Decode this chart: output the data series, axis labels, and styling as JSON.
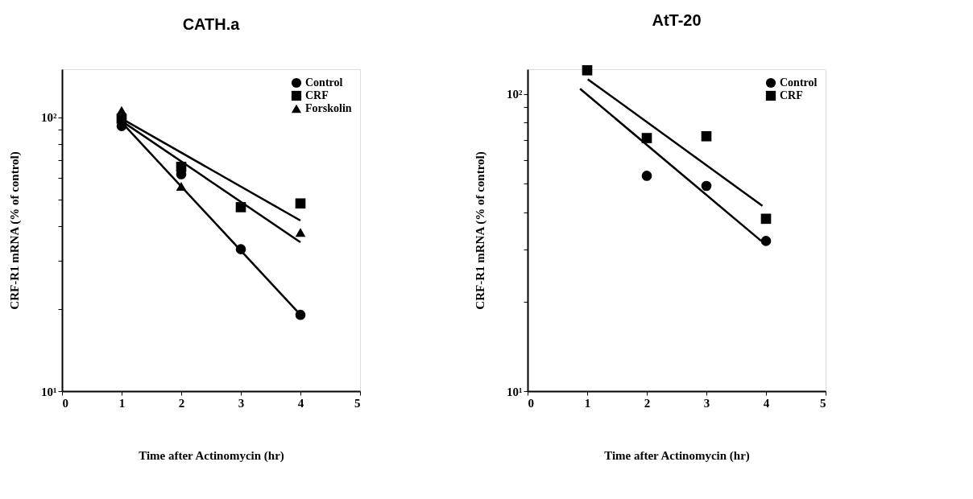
{
  "chart_data": [
    {
      "type": "scatter",
      "title": "CATH.a",
      "xlabel": "Time after Actinomycin (hr)",
      "ylabel": "CRF-R1 mRNA (% of control)",
      "log": "y",
      "grid": false,
      "legend": "top right",
      "xlim": [
        0,
        5
      ],
      "xticks": [
        0,
        1,
        2,
        3,
        4,
        5
      ],
      "ylim": [
        10,
        150
      ],
      "yticks": [
        {
          "value": 10,
          "label": "10¹"
        },
        {
          "value": 20,
          "label": null
        },
        {
          "value": 30,
          "label": null
        },
        {
          "value": 40,
          "label": null
        },
        {
          "value": 50,
          "label": null
        },
        {
          "value": 60,
          "label": null
        },
        {
          "value": 70,
          "label": null
        },
        {
          "value": 80,
          "label": null
        },
        {
          "value": 90,
          "label": null
        },
        {
          "value": 100,
          "label": "10²"
        }
      ],
      "series": [
        {
          "name": "Control",
          "color": "#000000",
          "marker": "circle",
          "x": [
            1,
            2,
            3,
            4
          ],
          "values": [
            93,
            62,
            33,
            19
          ]
        },
        {
          "name": "CRF",
          "color": "#000000",
          "marker": "square",
          "x": [
            1,
            2,
            3,
            4
          ],
          "values": [
            99,
            66,
            47,
            48.5
          ]
        },
        {
          "name": "Forskolin",
          "color": "#000000",
          "marker": "triangle",
          "x": [
            1,
            2,
            4
          ],
          "values": [
            106,
            56,
            38
          ]
        },
        {
          "type": "line",
          "color": "#000000",
          "x": [
            1,
            4
          ],
          "values": [
            96,
            19
          ]
        },
        {
          "type": "line",
          "color": "#000000",
          "x": [
            1,
            4
          ],
          "values": [
            99,
            42
          ]
        },
        {
          "type": "line",
          "color": "#000000",
          "x": [
            1,
            4
          ],
          "values": [
            97,
            35
          ]
        }
      ]
    },
    {
      "type": "scatter",
      "title": "AtT-20",
      "xlabel": "Time after Actinomycin (hr)",
      "ylabel": "CRF-R1 mRNA (% of control)",
      "log": "y",
      "grid": false,
      "legend": "top right",
      "xlim": [
        0,
        5
      ],
      "xticks": [
        0,
        1,
        2,
        3,
        4,
        5
      ],
      "ylim": [
        10,
        121
      ],
      "yticks": [
        {
          "value": 10,
          "label": "10¹"
        },
        {
          "value": 20,
          "label": null
        },
        {
          "value": 30,
          "label": null
        },
        {
          "value": 40,
          "label": null
        },
        {
          "value": 50,
          "label": null
        },
        {
          "value": 60,
          "label": null
        },
        {
          "value": 70,
          "label": null
        },
        {
          "value": 80,
          "label": null
        },
        {
          "value": 90,
          "label": null
        },
        {
          "value": 100,
          "label": "10²"
        }
      ],
      "series": [
        {
          "name": "Control",
          "color": "#000000",
          "marker": "circle",
          "x": [
            2,
            3,
            4
          ],
          "values": [
            53,
            49,
            32
          ]
        },
        {
          "name": "CRF",
          "color": "#000000",
          "marker": "square",
          "x": [
            1,
            2,
            3,
            4
          ],
          "values": [
            120,
            71,
            72,
            38
          ]
        },
        {
          "type": "line",
          "color": "#000000",
          "x": [
            0.88,
            3.92
          ],
          "values": [
            104,
            32
          ]
        },
        {
          "type": "line",
          "color": "#000000",
          "x": [
            1.01,
            3.94
          ],
          "values": [
            112,
            42
          ]
        }
      ]
    }
  ]
}
